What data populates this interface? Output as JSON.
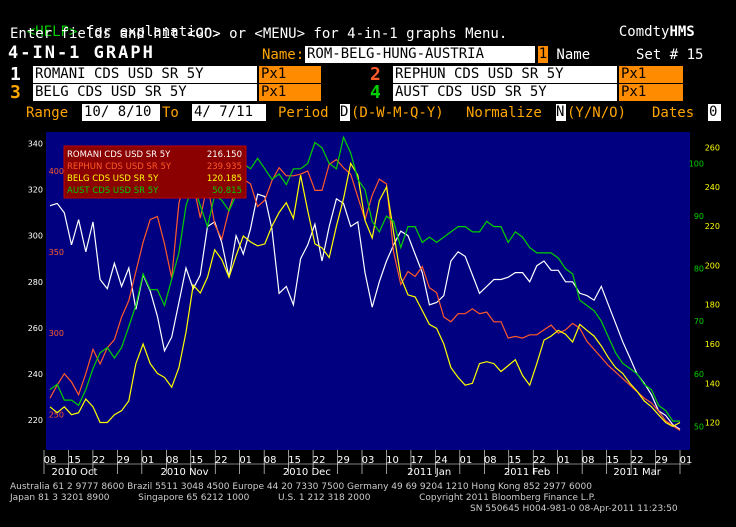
{
  "header": {
    "help": "<HELP>",
    "help_rest": " for explanation.",
    "brand_prefix": "Comdty",
    "brand": "HMS",
    "line2": "Enter fields and hit <GO> or <MENU> for 4-in-1 graphs Menu.",
    "title": "4-IN-1 GRAPH",
    "name_label": "Name:",
    "name_value": "ROM-BELG-HUNG-AUSTRIA",
    "name_num": "1",
    "name_suffix": " Name",
    "set_label": "Set # 15"
  },
  "fields": [
    {
      "num": "1",
      "num_color": "#ffffff",
      "security": "ROMANI CDS USD SR 5Y",
      "field": "Px1"
    },
    {
      "num": "2",
      "num_color": "#ff5a2a",
      "security": "REPHUN CDS USD SR 5Y",
      "field": "Px1"
    },
    {
      "num": "3",
      "num_color": "#ffa500",
      "security": "BELG CDS USD SR 5Y",
      "field": "Px1"
    },
    {
      "num": "4",
      "num_color": "#00d000",
      "security": "AUST CDS USD SR 5Y",
      "field": "Px1"
    }
  ],
  "range_bar": {
    "range_label": "Range",
    "start": "10/ 8/10",
    "to_label": "To",
    "end": "4/ 7/11",
    "period_label": "Period",
    "period_value": "D",
    "period_opts": "(D-W-M-Q-Y)",
    "normalize_label": "Normalize",
    "normalize_value": "N",
    "normalize_opts": "(Y/N/O)",
    "dates_label": "Dates",
    "dates_value": "0"
  },
  "legend": [
    {
      "name": "ROMANI CDS USD SR 5Y",
      "value": "216.150",
      "color": "#ffffff"
    },
    {
      "name": "REPHUN CDS USD SR 5Y",
      "value": "239.935",
      "color": "#ff5a2a"
    },
    {
      "name": "BELG CDS USD SR 5Y",
      "value": "120.185",
      "color": "#ffff00"
    },
    {
      "name": "AUST CDS USD SR 5Y",
      "value": "50.815",
      "color": "#00d000"
    }
  ],
  "footer": {
    "line1": "Australia 61 2 9777 8600 Brazil 5511 3048 4500 Europe 44 20 7330 7500 Germany 49 69 9204 1210 Hong Kong 852 2977 6000",
    "line2": "Japan 81 3 3201 8900          Singapore 65 6212 1000          U.S. 1 212 318 2000                 Copyright 2011 Bloomberg Finance L.P.",
    "line3": "SN 550645 H004-981-0 08-Apr-2011 11:23:50"
  },
  "chart_data": {
    "type": "line",
    "title": "",
    "x_ticks": [
      "08",
      "15",
      "22",
      "29",
      "01",
      "08",
      "15",
      "22",
      "01",
      "08",
      "15",
      "22",
      "29",
      "03",
      "10",
      "17",
      "24",
      "01",
      "08",
      "15",
      "22",
      "01",
      "08",
      "15",
      "22",
      "29",
      "01"
    ],
    "x_month_labels": [
      "2010 Oct",
      "2010 Nov",
      "2010 Dec",
      "2011 Jan",
      "2011 Feb",
      "2011 Mar"
    ],
    "axes": {
      "white_left": {
        "ticks": [
          220,
          240,
          260,
          280,
          300,
          320,
          340
        ],
        "ylim": [
          207,
          345
        ],
        "color": "#ffffff"
      },
      "red_left": {
        "ticks": [
          250,
          300,
          350,
          400
        ],
        "ylim": [
          228,
          424
        ],
        "color": "#ff5a2a"
      },
      "yellow_right": {
        "ticks": [
          120,
          140,
          160,
          180,
          200,
          220,
          240,
          260
        ],
        "ylim": [
          106,
          268
        ],
        "color": "#ffff00"
      },
      "green_right": {
        "ticks": [
          50,
          60,
          70,
          80,
          90,
          100
        ],
        "ylim": [
          45.5,
          106
        ],
        "color": "#00d000"
      }
    },
    "series": [
      {
        "name": "ROMANI CDS USD SR 5Y",
        "color": "#ffffff",
        "axis": "white_left",
        "values": [
          313,
          314,
          310,
          296,
          307,
          293,
          306,
          281,
          277,
          288,
          278,
          286,
          268,
          283,
          276,
          265,
          250,
          256,
          271,
          286,
          277,
          283,
          304,
          306,
          297,
          282,
          300,
          292,
          303,
          318,
          317,
          303,
          275,
          278,
          270,
          290,
          296,
          305,
          289,
          304,
          316,
          314,
          304,
          306,
          284,
          269,
          280,
          289,
          296,
          302,
          300,
          292,
          284,
          270,
          271,
          274,
          289,
          293,
          291,
          283,
          275,
          278,
          281,
          281,
          282,
          284,
          284,
          280,
          287,
          289,
          285,
          285,
          280,
          280,
          275,
          274,
          272,
          278,
          270,
          262,
          254,
          247,
          240,
          236,
          231,
          224,
          222,
          218,
          216
        ]
      },
      {
        "name": "REPHUN CDS USD SR 5Y",
        "color": "#ff5a2a",
        "axis": "red_left",
        "values": [
          260,
          268,
          275,
          270,
          262,
          275,
          290,
          281,
          291,
          296,
          310,
          320,
          338,
          356,
          370,
          372,
          355,
          334,
          380,
          398,
          392,
          371,
          392,
          367,
          358,
          376,
          390,
          395,
          392,
          378,
          382,
          394,
          402,
          397,
          397,
          398,
          400,
          388,
          388,
          404,
          407,
          402,
          398,
          384,
          370,
          385,
          395,
          392,
          350,
          330,
          338,
          335,
          341,
          328,
          325,
          310,
          307,
          312,
          312,
          315,
          312,
          313,
          307,
          307,
          297,
          298,
          297,
          299,
          299,
          302,
          305,
          300,
          302,
          306,
          303,
          295,
          290,
          285,
          280,
          276,
          272,
          268,
          264,
          260,
          257,
          252,
          246,
          243,
          240
        ]
      },
      {
        "name": "BELG CDS USD SR 5Y",
        "color": "#ffff00",
        "axis": "yellow_right",
        "values": [
          128,
          125,
          128,
          124,
          125,
          132,
          128,
          120,
          120,
          124,
          126,
          131,
          150,
          160,
          150,
          145,
          143,
          138,
          148,
          166,
          190,
          186,
          194,
          208,
          203,
          194,
          205,
          215,
          212,
          210,
          211,
          220,
          227,
          232,
          224,
          246,
          228,
          211,
          209,
          204,
          220,
          234,
          252,
          246,
          223,
          214,
          233,
          240,
          217,
          194,
          185,
          184,
          177,
          170,
          168,
          160,
          148,
          143,
          139,
          140,
          150,
          151,
          150,
          146,
          149,
          152,
          144,
          139,
          150,
          162,
          164,
          167,
          165,
          161,
          170,
          167,
          164,
          159,
          153,
          148,
          145,
          140,
          136,
          131,
          128,
          124,
          120,
          118,
          120
        ]
      },
      {
        "name": "AUST CDS USD SR 5Y",
        "color": "#00d000",
        "axis": "green_right",
        "values": [
          57,
          58,
          55,
          55,
          54,
          57,
          61,
          64,
          65,
          63,
          65,
          69,
          73,
          79,
          76,
          76,
          73,
          78,
          83,
          92,
          96,
          92,
          88,
          94,
          93,
          91,
          94,
          100,
          99,
          101,
          99,
          97,
          98,
          96,
          99,
          99,
          100,
          104,
          103,
          100,
          99,
          105,
          102,
          97,
          95,
          89,
          87,
          90,
          89,
          84,
          88,
          88,
          85,
          86,
          85,
          86,
          87,
          88,
          88,
          87,
          87,
          89,
          88,
          88,
          85,
          87,
          86,
          84,
          83,
          83,
          83,
          82,
          80,
          79,
          74,
          73,
          72,
          70,
          67,
          64,
          62,
          61,
          60,
          58,
          57,
          54,
          53,
          51,
          51
        ]
      }
    ]
  }
}
